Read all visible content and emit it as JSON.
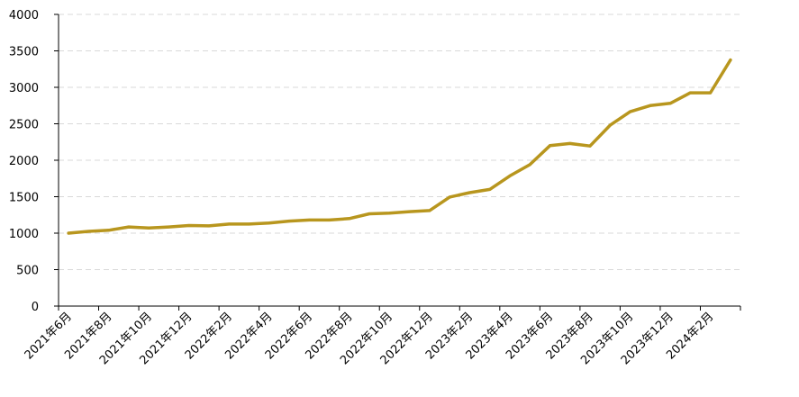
{
  "chart_data": {
    "type": "line",
    "title": "",
    "xlabel": "",
    "ylabel": "",
    "ylim": [
      0,
      4000
    ],
    "yticks": [
      0,
      500,
      1000,
      1500,
      2000,
      2500,
      3000,
      3500,
      4000
    ],
    "grid": "horizontal-dashed",
    "legend": "none",
    "x": [
      "2021年6月",
      "2021年7月",
      "2021年8月",
      "2021年9月",
      "2021年10月",
      "2021年11月",
      "2021年12月",
      "2022年1月",
      "2022年2月",
      "2022年3月",
      "2022年4月",
      "2022年5月",
      "2022年6月",
      "2022年7月",
      "2022年8月",
      "2022年9月",
      "2022年10月",
      "2022年11月",
      "2022年12月",
      "2023年1月",
      "2023年2月",
      "2023年3月",
      "2023年4月",
      "2023年5月",
      "2023年6月",
      "2023年7月",
      "2023年8月",
      "2023年9月",
      "2023年10月",
      "2023年11月",
      "2023年12月",
      "2024年1月",
      "2024年2月",
      "2024年3月"
    ],
    "xtick_labels": [
      "2021年6月",
      "2021年8月",
      "2021年10月",
      "2021年12月",
      "2022年2月",
      "2022年4月",
      "2022年6月",
      "2022年8月",
      "2022年10月",
      "2022年12月",
      "2023年2月",
      "2023年4月",
      "2023年6月",
      "2023年8月",
      "2023年10月",
      "2023年12月",
      "2024年2月"
    ],
    "series": [
      {
        "color": "#b8961e",
        "values": [
          1000,
          1025,
          1040,
          1085,
          1070,
          1085,
          1105,
          1100,
          1125,
          1125,
          1140,
          1165,
          1180,
          1180,
          1200,
          1265,
          1275,
          1295,
          1310,
          1495,
          1555,
          1600,
          1785,
          1940,
          2200,
          2230,
          2195,
          2480,
          2665,
          2750,
          2780,
          2925,
          2925,
          3375
        ]
      }
    ]
  }
}
